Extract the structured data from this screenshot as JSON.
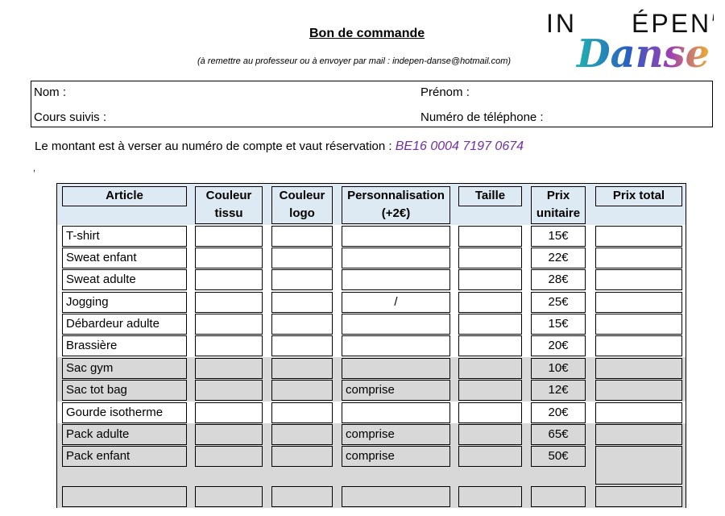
{
  "header": {
    "title": "Bon de commande",
    "subtitle": "(à remettre au professeur ou à envoyer par mail : indepen-danse@hotmail.com)",
    "logo_text": "INDÉPEN' Danse"
  },
  "form": {
    "nom": "Nom :",
    "prenom": "Prénom :",
    "cours": "Cours suivis :",
    "telephone": "Numéro de téléphone :"
  },
  "payment": {
    "text": "Le montant est à verser au numéro de compte et vaut réservation :",
    "iban": "BE16 0004 7197 0674",
    "iban_color": "#7030a0"
  },
  "stray_mark": ",",
  "table": {
    "columns": [
      {
        "line1": "Article",
        "line2": ""
      },
      {
        "line1": "Couleur",
        "line2": "tissu"
      },
      {
        "line1": "Couleur",
        "line2": "logo"
      },
      {
        "line1": "Personnalisation",
        "line2": "(+2€)"
      },
      {
        "line1": "Taille",
        "line2": ""
      },
      {
        "line1": "Prix",
        "line2": "unitaire"
      },
      {
        "line1": "Prix total",
        "line2": ""
      }
    ],
    "rows": [
      {
        "article": "T-shirt",
        "perso": "",
        "prix": "15€",
        "shade": "white"
      },
      {
        "article": "Sweat enfant",
        "perso": "",
        "prix": "22€",
        "shade": "white"
      },
      {
        "article": "Sweat adulte",
        "perso": "",
        "prix": "28€",
        "shade": "white"
      },
      {
        "article": "Jogging",
        "perso": "/",
        "prix": "25€",
        "shade": "white"
      },
      {
        "article": "Débardeur adulte",
        "perso": "",
        "prix": "15€",
        "shade": "white"
      },
      {
        "article": "Brassière",
        "perso": "",
        "prix": "20€",
        "shade": "white"
      },
      {
        "article": "Sac gym",
        "perso": "",
        "prix": "10€",
        "shade": "gray"
      },
      {
        "article": "Sac tot bag",
        "perso": "comprise",
        "prix": "12€",
        "shade": "gray"
      },
      {
        "article": "Gourde isotherme",
        "perso": "",
        "prix": "20€",
        "shade": "white"
      },
      {
        "article": "Pack adulte",
        "perso": "comprise",
        "prix": "65€",
        "shade": "gray"
      },
      {
        "article": "Pack enfant",
        "perso": "comprise",
        "prix": "50€",
        "shade": "gray"
      },
      {
        "article": "",
        "perso": "",
        "prix": "",
        "shade": "gray"
      }
    ]
  }
}
